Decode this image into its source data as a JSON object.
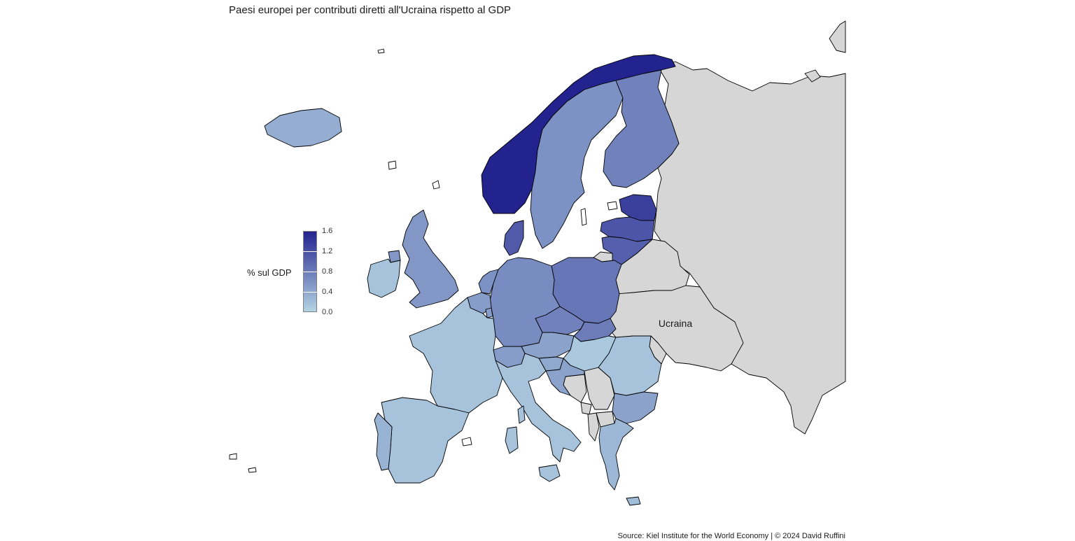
{
  "title": "Paesi europei per contributi diretti all'Ucraina rispetto al GDP",
  "caption": "Source: Kiel Institute for the World Economy | © 2024 David Ruffini",
  "legend": {
    "title": "% sul GDP",
    "min": 0.0,
    "max": 1.6,
    "ticks": [
      "1.6",
      "1.2",
      "0.8",
      "0.4",
      "0.0"
    ],
    "tick_values": [
      1.6,
      1.2,
      0.8,
      0.4,
      0.0
    ],
    "color_low": "#b3d4e3",
    "color_high": "#23238f"
  },
  "map_labels": {
    "ukraine": "Ucraina"
  },
  "colors": {
    "no_data": "#d6d6d6",
    "border": "#000000",
    "background": "#ffffff"
  },
  "chart_data": {
    "type": "choropleth",
    "value_label": "% sul GDP",
    "countries": [
      {
        "key": "norway",
        "value": 1.6
      },
      {
        "key": "estonia",
        "value": 1.35
      },
      {
        "key": "latvia",
        "value": 1.15
      },
      {
        "key": "lithuania",
        "value": 1.05
      },
      {
        "key": "denmark",
        "value": 1.1
      },
      {
        "key": "poland",
        "value": 0.85
      },
      {
        "key": "finland",
        "value": 0.75
      },
      {
        "key": "czechia",
        "value": 0.75
      },
      {
        "key": "slovakia",
        "value": 0.8
      },
      {
        "key": "sweden",
        "value": 0.6
      },
      {
        "key": "germany",
        "value": 0.65
      },
      {
        "key": "uk",
        "value": 0.55
      },
      {
        "key": "netherlands",
        "value": 0.6
      },
      {
        "key": "belgium",
        "value": 0.5
      },
      {
        "key": "luxembourg",
        "value": 0.5
      },
      {
        "key": "austria",
        "value": 0.45
      },
      {
        "key": "switzerland",
        "value": 0.5
      },
      {
        "key": "slovenia",
        "value": 0.4
      },
      {
        "key": "croatia",
        "value": 0.45
      },
      {
        "key": "bulgaria",
        "value": 0.45
      },
      {
        "key": "iceland",
        "value": 0.35
      },
      {
        "key": "portugal",
        "value": 0.3
      },
      {
        "key": "ireland",
        "value": 0.15
      },
      {
        "key": "france",
        "value": 0.15
      },
      {
        "key": "spain",
        "value": 0.15
      },
      {
        "key": "italy",
        "value": 0.15
      },
      {
        "key": "hungary",
        "value": 0.1
      },
      {
        "key": "romania",
        "value": 0.15
      },
      {
        "key": "greece",
        "value": 0.25
      },
      {
        "key": "cyprus",
        "value": 0.2
      }
    ],
    "no_data": [
      "ukraine",
      "russia",
      "belarus",
      "moldova",
      "serbia",
      "bosnia",
      "montenegro",
      "albania",
      "north_macedonia",
      "kosovo",
      "kaliningrad"
    ]
  }
}
